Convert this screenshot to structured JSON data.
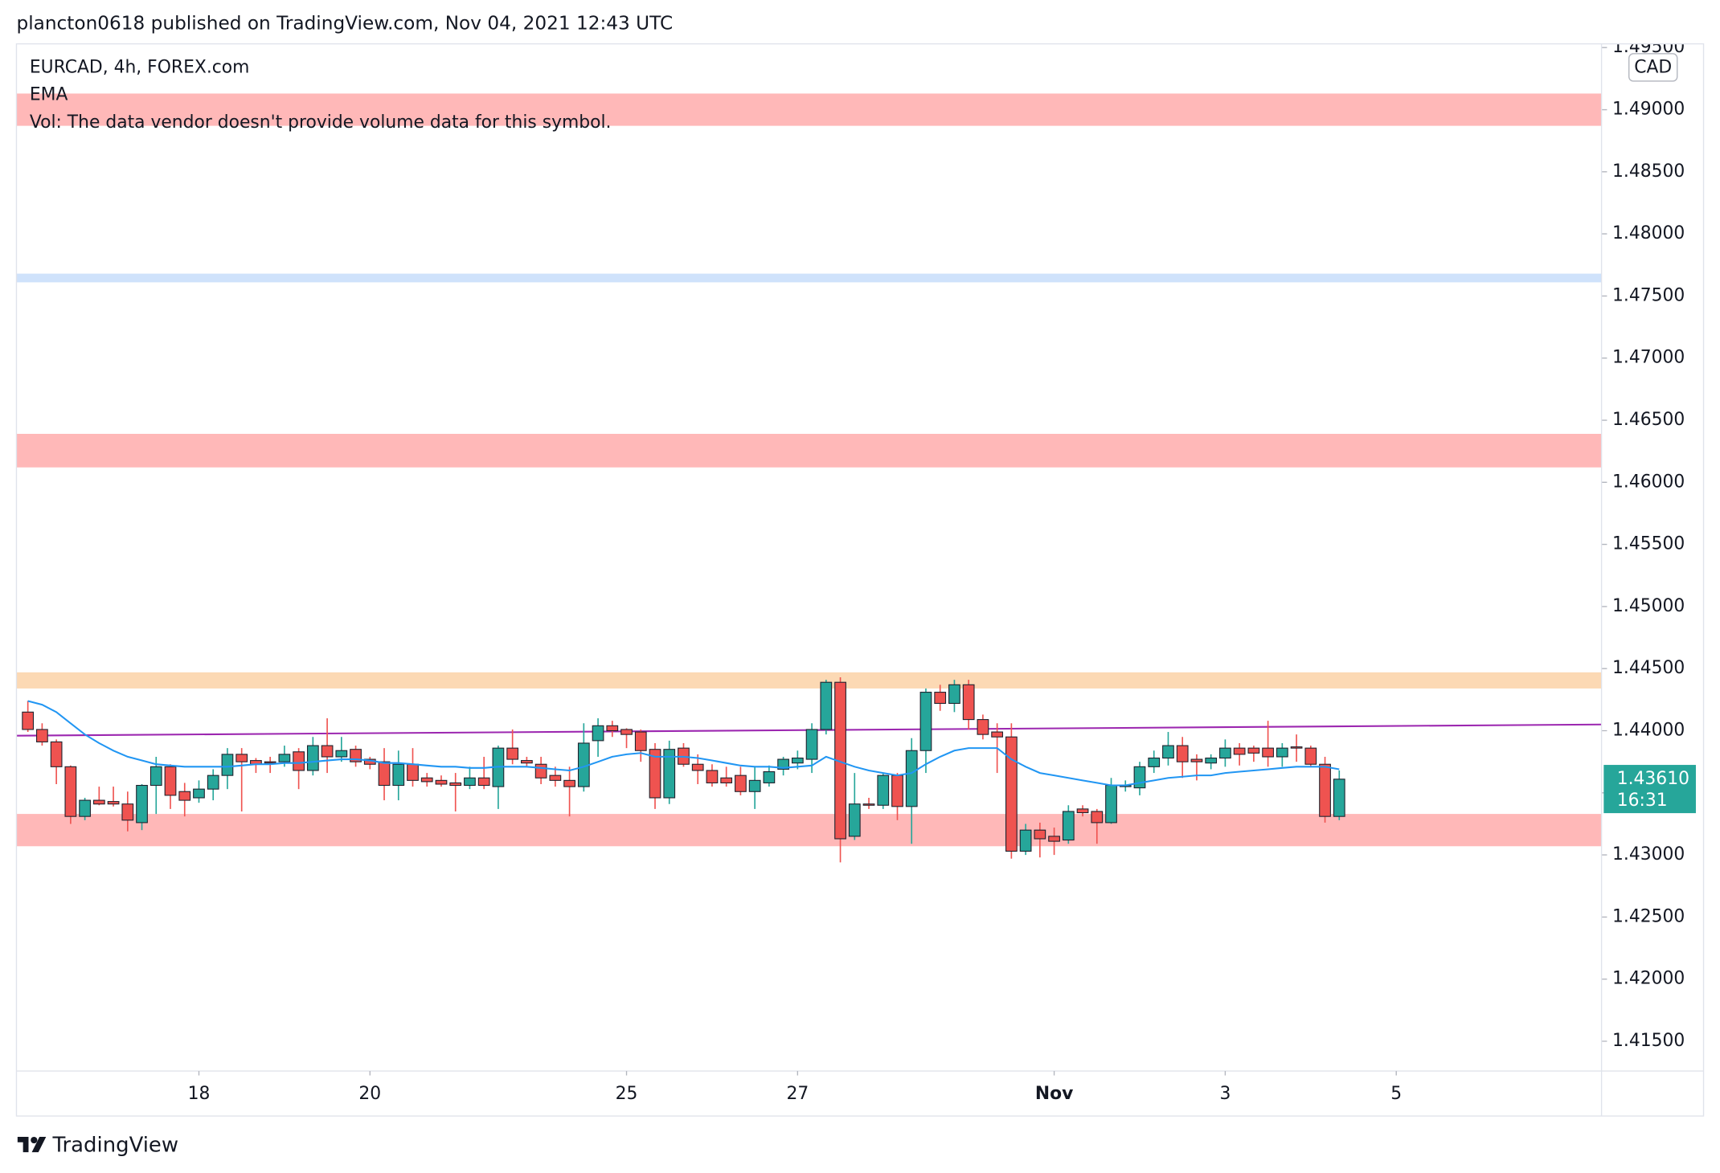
{
  "chart_data": {
    "type": "candlestick",
    "header": "plancton0618 published on TradingView.com, Nov 04, 2021 12:43 UTC",
    "symbol_line": "EURCAD, 4h, FOREX.com",
    "volume_note": "Vol: The data vendor doesn't provide volume data for this symbol.",
    "currency": "CAD",
    "footer": "TradingView",
    "up_color": "#26a69a",
    "down_color": "#ef5350",
    "grid": false,
    "ohlc": [
      [
        1.4415,
        1.4424,
        1.4399,
        1.4401
      ],
      [
        1.4401,
        1.4406,
        1.4388,
        1.4391
      ],
      [
        1.4391,
        1.4393,
        1.4357,
        1.4371
      ],
      [
        1.4371,
        1.4372,
        1.4325,
        1.4331
      ],
      [
        1.4331,
        1.4346,
        1.4328,
        1.4344
      ],
      [
        1.4344,
        1.4355,
        1.434,
        1.4341
      ],
      [
        1.4343,
        1.4355,
        1.4339,
        1.4341
      ],
      [
        1.4341,
        1.4351,
        1.4319,
        1.4328
      ],
      [
        1.4326,
        1.4357,
        1.432,
        1.4356
      ],
      [
        1.4356,
        1.4379,
        1.4333,
        1.4371
      ],
      [
        1.4371,
        1.4373,
        1.4337,
        1.4348
      ],
      [
        1.4351,
        1.4358,
        1.4331,
        1.4344
      ],
      [
        1.4346,
        1.436,
        1.4342,
        1.4353
      ],
      [
        1.4353,
        1.4369,
        1.4344,
        1.4364
      ],
      [
        1.4364,
        1.4386,
        1.4353,
        1.4381
      ],
      [
        1.4381,
        1.4386,
        1.4335,
        1.4375
      ],
      [
        1.4376,
        1.4378,
        1.4366,
        1.4373
      ],
      [
        1.4375,
        1.4379,
        1.4366,
        1.4374
      ],
      [
        1.4375,
        1.4388,
        1.4371,
        1.4381
      ],
      [
        1.4383,
        1.4386,
        1.4353,
        1.4368
      ],
      [
        1.4368,
        1.4395,
        1.4364,
        1.4388
      ],
      [
        1.4388,
        1.441,
        1.4366,
        1.4379
      ],
      [
        1.4379,
        1.4395,
        1.4375,
        1.4384
      ],
      [
        1.4385,
        1.4388,
        1.4371,
        1.4375
      ],
      [
        1.4377,
        1.4379,
        1.4369,
        1.4373
      ],
      [
        1.4375,
        1.4386,
        1.4344,
        1.4356
      ],
      [
        1.4356,
        1.4384,
        1.4344,
        1.4373
      ],
      [
        1.4373,
        1.4386,
        1.4355,
        1.436
      ],
      [
        1.4362,
        1.4366,
        1.4355,
        1.4359
      ],
      [
        1.436,
        1.4364,
        1.4355,
        1.4357
      ],
      [
        1.4358,
        1.4366,
        1.4335,
        1.4356
      ],
      [
        1.4356,
        1.4371,
        1.4353,
        1.4362
      ],
      [
        1.4362,
        1.4379,
        1.4353,
        1.4356
      ],
      [
        1.4355,
        1.4388,
        1.4337,
        1.4386
      ],
      [
        1.4386,
        1.4401,
        1.4373,
        1.4377
      ],
      [
        1.4376,
        1.4379,
        1.4371,
        1.4374
      ],
      [
        1.4373,
        1.4379,
        1.4357,
        1.4362
      ],
      [
        1.4364,
        1.4371,
        1.4355,
        1.436
      ],
      [
        1.436,
        1.4371,
        1.4331,
        1.4355
      ],
      [
        1.4355,
        1.4406,
        1.4351,
        1.439
      ],
      [
        1.4392,
        1.441,
        1.4379,
        1.4404
      ],
      [
        1.4404,
        1.4408,
        1.4395,
        1.44
      ],
      [
        1.4401,
        1.4402,
        1.4386,
        1.4397
      ],
      [
        1.4399,
        1.4401,
        1.4375,
        1.4384
      ],
      [
        1.4385,
        1.439,
        1.4337,
        1.4346
      ],
      [
        1.4346,
        1.4392,
        1.4341,
        1.4385
      ],
      [
        1.4386,
        1.439,
        1.4371,
        1.4373
      ],
      [
        1.4373,
        1.4381,
        1.4357,
        1.4368
      ],
      [
        1.4368,
        1.4373,
        1.4355,
        1.4358
      ],
      [
        1.4362,
        1.4371,
        1.4355,
        1.4358
      ],
      [
        1.4364,
        1.4371,
        1.4348,
        1.4351
      ],
      [
        1.4351,
        1.4371,
        1.4337,
        1.436
      ],
      [
        1.4358,
        1.4372,
        1.4355,
        1.4367
      ],
      [
        1.4369,
        1.4379,
        1.4364,
        1.4377
      ],
      [
        1.4374,
        1.4384,
        1.4369,
        1.4378
      ],
      [
        1.4377,
        1.4406,
        1.4366,
        1.4401
      ],
      [
        1.4401,
        1.4441,
        1.4397,
        1.4439
      ],
      [
        1.4439,
        1.4443,
        1.4294,
        1.4313
      ],
      [
        1.4315,
        1.4366,
        1.4312,
        1.4341
      ],
      [
        1.4341,
        1.4346,
        1.4337,
        1.434
      ],
      [
        1.434,
        1.4366,
        1.4337,
        1.4364
      ],
      [
        1.4364,
        1.4366,
        1.4328,
        1.4339
      ],
      [
        1.4339,
        1.4394,
        1.4309,
        1.4384
      ],
      [
        1.4384,
        1.4434,
        1.4366,
        1.4431
      ],
      [
        1.4431,
        1.4437,
        1.4416,
        1.4422
      ],
      [
        1.4422,
        1.4441,
        1.4415,
        1.4437
      ],
      [
        1.4437,
        1.4441,
        1.4401,
        1.4409
      ],
      [
        1.4409,
        1.4413,
        1.4393,
        1.4397
      ],
      [
        1.4399,
        1.4406,
        1.4366,
        1.4395
      ],
      [
        1.4395,
        1.4406,
        1.4297,
        1.4303
      ],
      [
        1.4303,
        1.4325,
        1.43,
        1.432
      ],
      [
        1.432,
        1.4326,
        1.4298,
        1.4313
      ],
      [
        1.4315,
        1.4322,
        1.43,
        1.4311
      ],
      [
        1.4312,
        1.434,
        1.4309,
        1.4335
      ],
      [
        1.4337,
        1.434,
        1.4331,
        1.4334
      ],
      [
        1.4335,
        1.4337,
        1.4309,
        1.4326
      ],
      [
        1.4326,
        1.4362,
        1.4325,
        1.4356
      ],
      [
        1.4355,
        1.436,
        1.4351,
        1.4356
      ],
      [
        1.4354,
        1.4375,
        1.4348,
        1.4371
      ],
      [
        1.4371,
        1.4384,
        1.4366,
        1.4378
      ],
      [
        1.4378,
        1.4399,
        1.4372,
        1.4388
      ],
      [
        1.4388,
        1.4395,
        1.4362,
        1.4375
      ],
      [
        1.4377,
        1.4381,
        1.436,
        1.4375
      ],
      [
        1.4374,
        1.4381,
        1.4369,
        1.4378
      ],
      [
        1.4378,
        1.4393,
        1.4371,
        1.4386
      ],
      [
        1.4386,
        1.439,
        1.4372,
        1.4381
      ],
      [
        1.4386,
        1.4388,
        1.4375,
        1.4382
      ],
      [
        1.4386,
        1.4408,
        1.4371,
        1.4379
      ],
      [
        1.4379,
        1.439,
        1.4371,
        1.4386
      ],
      [
        1.4387,
        1.4397,
        1.4375,
        1.4386
      ],
      [
        1.4386,
        1.4388,
        1.4371,
        1.4373
      ],
      [
        1.4373,
        1.4379,
        1.4326,
        1.4331
      ],
      [
        1.4331,
        1.4368,
        1.4328,
        1.4361
      ]
    ],
    "ema": {
      "name": "EMA",
      "color": "#2196f3",
      "values": [
        1.4424,
        1.4421,
        1.4415,
        1.4406,
        1.4397,
        1.439,
        1.4384,
        1.4379,
        1.4376,
        1.4373,
        1.4372,
        1.4371,
        1.4371,
        1.4371,
        1.4371,
        1.4372,
        1.4373,
        1.4373,
        1.4374,
        1.4374,
        1.4375,
        1.4376,
        1.4377,
        1.4377,
        1.4376,
        1.4374,
        1.4374,
        1.4373,
        1.4372,
        1.4371,
        1.4371,
        1.437,
        1.437,
        1.4371,
        1.4371,
        1.4371,
        1.437,
        1.4369,
        1.4368,
        1.4371,
        1.4375,
        1.4379,
        1.4381,
        1.4382,
        1.4379,
        1.4379,
        1.4379,
        1.4378,
        1.4376,
        1.4374,
        1.4372,
        1.4371,
        1.4371,
        1.437,
        1.4371,
        1.4372,
        1.4379,
        1.4375,
        1.4371,
        1.4368,
        1.4366,
        1.4364,
        1.4366,
        1.4373,
        1.4379,
        1.4384,
        1.4386,
        1.4386,
        1.4386,
        1.4377,
        1.4371,
        1.4366,
        1.4364,
        1.4362,
        1.436,
        1.4358,
        1.4356,
        1.4356,
        1.4358,
        1.436,
        1.4362,
        1.4363,
        1.4364,
        1.4364,
        1.4366,
        1.4367,
        1.4368,
        1.4369,
        1.437,
        1.4371,
        1.4371,
        1.4371,
        1.4369
      ]
    },
    "zones": [
      {
        "lo": 1.4887,
        "hi": 1.4913,
        "color": "#ffb8b8"
      },
      {
        "lo": 1.4761,
        "hi": 1.4768,
        "color": "#cfe2fb"
      },
      {
        "lo": 1.4612,
        "hi": 1.4639,
        "color": "#ffb8b8"
      },
      {
        "lo": 1.4434,
        "hi": 1.4447,
        "color": "#fcd9b4"
      },
      {
        "lo": 1.4307,
        "hi": 1.4333,
        "color": "#ffb8b8"
      }
    ],
    "trendline": {
      "values": [
        1.4396,
        1.4405
      ],
      "color": "#9c27b0"
    },
    "last_price": {
      "value": 1.4361,
      "label": "1.43610"
    },
    "countdown": "16:31",
    "xlim": [
      -0.8,
      110.4
    ],
    "xticks": [
      {
        "value": 12,
        "label": "18"
      },
      {
        "value": 24,
        "label": "20"
      },
      {
        "value": 42,
        "label": "25"
      },
      {
        "value": 54,
        "label": "27"
      },
      {
        "value": 72,
        "label": "Nov"
      },
      {
        "value": 84,
        "label": "3"
      },
      {
        "value": 96,
        "label": "5"
      }
    ],
    "ylim": [
      1.4126,
      1.4953
    ],
    "yticks": [
      {
        "value": 1.415,
        "label": "1.41500"
      },
      {
        "value": 1.42,
        "label": "1.42000"
      },
      {
        "value": 1.425,
        "label": "1.42500"
      },
      {
        "value": 1.43,
        "label": "1.43000"
      },
      {
        "value": 1.435,
        "label": "1.43500"
      },
      {
        "value": 1.44,
        "label": "1.44000"
      },
      {
        "value": 1.445,
        "label": "1.44500"
      },
      {
        "value": 1.45,
        "label": "1.45000"
      },
      {
        "value": 1.455,
        "label": "1.45500"
      },
      {
        "value": 1.46,
        "label": "1.46000"
      },
      {
        "value": 1.465,
        "label": "1.46500"
      },
      {
        "value": 1.47,
        "label": "1.47000"
      },
      {
        "value": 1.475,
        "label": "1.47500"
      },
      {
        "value": 1.48,
        "label": "1.48000"
      },
      {
        "value": 1.485,
        "label": "1.48500"
      },
      {
        "value": 1.49,
        "label": "1.49000"
      },
      {
        "value": 1.495,
        "label": "1.49500"
      }
    ]
  }
}
